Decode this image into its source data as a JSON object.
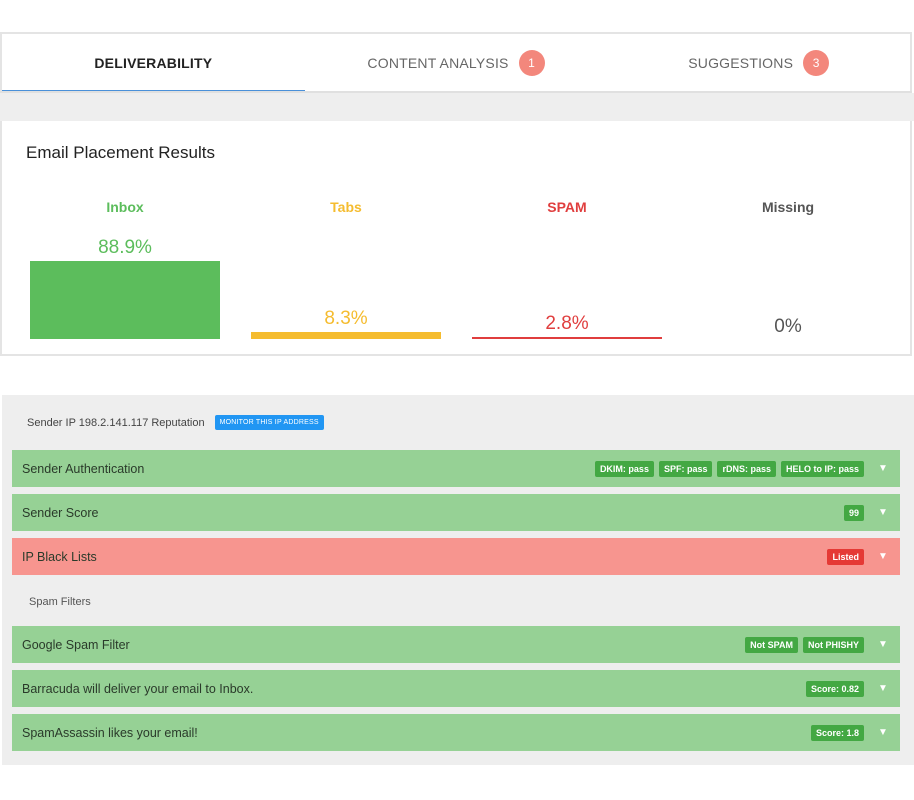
{
  "tabs": [
    {
      "label": "DELIVERABILITY",
      "badge": null
    },
    {
      "label": "CONTENT ANALYSIS",
      "badge": "1"
    },
    {
      "label": "SUGGESTIONS",
      "badge": "3"
    }
  ],
  "placement": {
    "title": "Email Placement Results",
    "columns": [
      {
        "label": "Inbox",
        "percent": "88.9%",
        "value": 88.9,
        "color": "#5cbd5c"
      },
      {
        "label": "Tabs",
        "percent": "8.3%",
        "value": 8.3,
        "color": "#f5bc2f"
      },
      {
        "label": "SPAM",
        "percent": "2.8%",
        "value": 2.8,
        "color": "#e03e3e"
      },
      {
        "label": "Missing",
        "percent": "0%",
        "value": 0,
        "color": "#555555"
      }
    ]
  },
  "reputation": {
    "header": "Sender IP 198.2.141.117 Reputation",
    "monitor_label": "MONITOR THIS IP ADDRESS",
    "rows": [
      {
        "label": "Sender Authentication",
        "status": "green",
        "badges": [
          "DKIM: pass",
          "SPF: pass",
          "rDNS: pass",
          "HELO to IP: pass"
        ]
      },
      {
        "label": "Sender Score",
        "status": "green",
        "badges": [
          "99"
        ]
      },
      {
        "label": "IP Black Lists",
        "status": "red",
        "badges": [
          "Listed"
        ]
      }
    ],
    "spam_filters_label": "Spam Filters",
    "spam_rows": [
      {
        "label": "Google Spam Filter",
        "status": "green",
        "badges": [
          "Not SPAM",
          "Not PHISHY"
        ]
      },
      {
        "label": "Barracuda will deliver your email to Inbox.",
        "status": "green",
        "badges": [
          "Score: 0.82"
        ]
      },
      {
        "label": "SpamAssassin likes your email!",
        "status": "green",
        "badges": [
          "Score: 1.8"
        ]
      }
    ]
  },
  "colors": {
    "accent": "#4a90d9",
    "badge_tab": "#f3877c",
    "row_green": "#96d195",
    "row_red": "#f7958f",
    "badge_green": "#43a843",
    "badge_red": "#e53935"
  }
}
